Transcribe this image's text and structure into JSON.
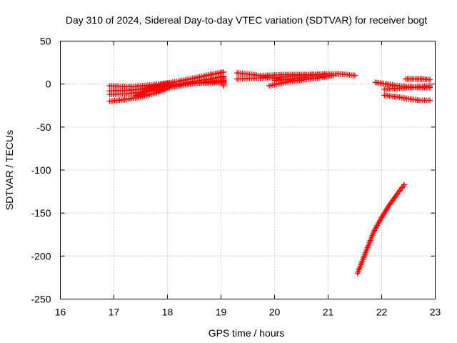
{
  "chart_data": {
    "type": "scatter",
    "title": "Day 310 of 2024, Sidereal Day-to-day VTEC variation (SDTVAR) for receiver bogt",
    "xlabel": "GPS time / hours",
    "ylabel": "SDTVAR / TECUs",
    "xlim": [
      16,
      23
    ],
    "ylim": [
      -250,
      50
    ],
    "xticks": [
      16,
      17,
      18,
      19,
      20,
      21,
      22,
      23
    ],
    "yticks": [
      -250,
      -200,
      -150,
      -100,
      -50,
      0,
      50
    ],
    "xtick_labels": [
      "16",
      "17",
      "18",
      "19",
      "20",
      "21",
      "22",
      "23"
    ],
    "ytick_labels": [
      "-250",
      "-200",
      "-150",
      "-100",
      "-50",
      "0",
      "50"
    ],
    "grid": true,
    "marker": "+",
    "color": "#ff0000",
    "series": [
      {
        "name": "s1",
        "x": [
          16.92,
          17.3,
          17.7,
          18.1,
          18.5,
          18.8,
          19.05
        ],
        "y": [
          -2,
          -3,
          -1,
          2,
          7,
          11,
          14
        ]
      },
      {
        "name": "s2",
        "x": [
          16.92,
          17.3,
          17.7,
          18.1,
          18.5,
          18.8,
          19.05
        ],
        "y": [
          -8,
          -7,
          -5,
          -1,
          3,
          6,
          9
        ]
      },
      {
        "name": "s3",
        "x": [
          16.92,
          17.3,
          17.7,
          18.1,
          18.5,
          18.8,
          19.05
        ],
        "y": [
          -12,
          -11,
          -8,
          -3,
          1,
          3,
          4
        ]
      },
      {
        "name": "s4",
        "x": [
          16.92,
          17.2,
          17.5,
          17.8,
          18.1,
          18.5,
          19.05
        ],
        "y": [
          -20,
          -18,
          -15,
          -10,
          -2,
          1,
          2
        ]
      },
      {
        "name": "s5",
        "x": [
          17.4,
          17.55,
          17.7,
          17.85,
          18.0
        ],
        "y": [
          -14,
          -10,
          -6,
          -3,
          -1
        ]
      },
      {
        "name": "s6",
        "x": [
          17.5,
          17.65,
          17.8,
          17.95,
          18.1
        ],
        "y": [
          -6,
          -4,
          -2,
          0,
          2
        ]
      },
      {
        "name": "s7",
        "x": [
          19.05,
          19.05,
          19.05
        ],
        "y": [
          -2,
          3,
          8
        ]
      },
      {
        "name": "s8",
        "x": [
          19.3,
          19.6,
          19.9,
          20.2,
          20.5
        ],
        "y": [
          13,
          11,
          8,
          5,
          4
        ]
      },
      {
        "name": "s9",
        "x": [
          19.3,
          19.7,
          20.1,
          20.5,
          20.9,
          21.2,
          21.5
        ],
        "y": [
          6,
          7,
          8,
          10,
          11,
          12,
          10
        ]
      },
      {
        "name": "s10",
        "x": [
          19.9,
          20.2,
          20.5,
          20.8,
          21.0
        ],
        "y": [
          -2,
          2,
          5,
          7,
          9
        ]
      },
      {
        "name": "s11",
        "x": [
          20.0,
          20.3,
          20.6,
          20.9,
          21.1
        ],
        "y": [
          4,
          6,
          8,
          9,
          10
        ]
      },
      {
        "name": "s12",
        "x": [
          19.8,
          20.2,
          20.6,
          21.0
        ],
        "y": [
          10,
          11,
          11,
          12
        ]
      },
      {
        "name": "s13",
        "x": [
          21.55,
          21.7,
          21.85,
          22.0,
          22.15,
          22.3,
          22.42
        ],
        "y": [
          -220,
          -196,
          -172,
          -155,
          -140,
          -127,
          -117
        ]
      },
      {
        "name": "s14",
        "x": [
          21.88,
          22.1,
          22.3,
          22.5,
          22.7,
          22.9
        ],
        "y": [
          2,
          0,
          -2,
          -3,
          -4,
          -4
        ]
      },
      {
        "name": "s15",
        "x": [
          22.05,
          22.3,
          22.5,
          22.7,
          22.9
        ],
        "y": [
          -13,
          -15,
          -17,
          -19,
          -19
        ]
      },
      {
        "name": "s16",
        "x": [
          22.05,
          22.3,
          22.5,
          22.7,
          22.9
        ],
        "y": [
          -6,
          -5,
          -4,
          -3,
          -2
        ]
      },
      {
        "name": "s17",
        "x": [
          22.45,
          22.6,
          22.75,
          22.9
        ],
        "y": [
          6,
          6,
          6,
          5
        ]
      }
    ]
  }
}
